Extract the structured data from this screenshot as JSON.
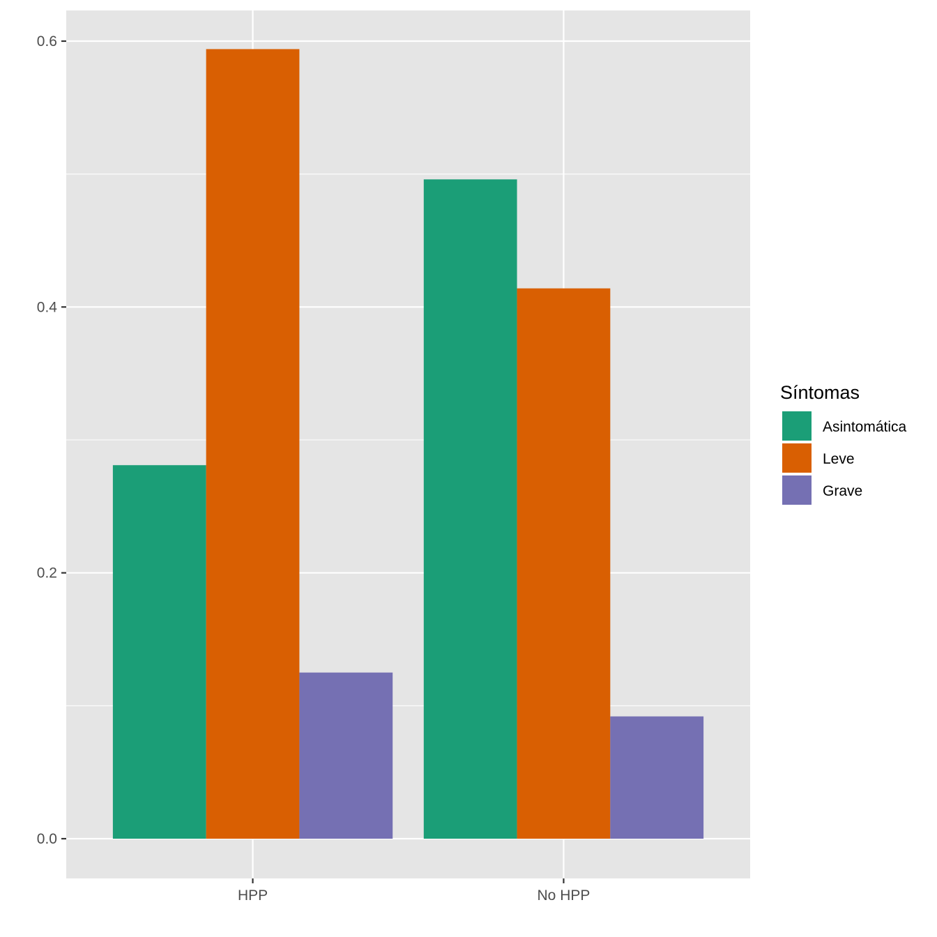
{
  "chart_data": {
    "type": "bar",
    "title": "",
    "xlabel": "",
    "ylabel": "",
    "categories": [
      "HPP",
      "No HPP"
    ],
    "series": [
      {
        "name": "Asintomática",
        "color": "#1B9E77",
        "values": [
          0.281,
          0.496
        ]
      },
      {
        "name": "Leve",
        "color": "#D95F02",
        "values": [
          0.594,
          0.414
        ]
      },
      {
        "name": "Grave",
        "color": "#7570B3",
        "values": [
          0.125,
          0.092
        ]
      }
    ],
    "ylim": [
      -0.03,
      0.623
    ],
    "yticks": [
      "0.0",
      "0.2",
      "0.4",
      "0.6"
    ],
    "ytick_values": [
      0.0,
      0.2,
      0.4,
      0.6
    ],
    "grid": true,
    "legend": {
      "title": "Síntomas",
      "position": "right"
    },
    "panel_background": "#E5E5E5"
  }
}
